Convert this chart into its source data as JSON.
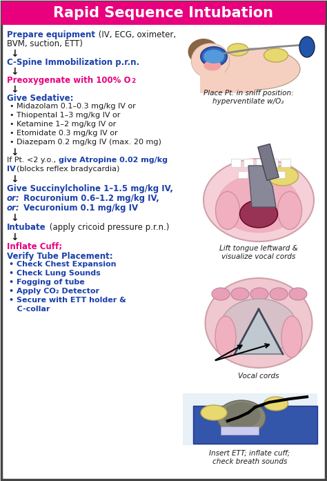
{
  "title": "Rapid Sequence Intubation",
  "title_bg": "#E8007D",
  "title_color": "#FFFFFF",
  "bg_color": "#FFFFFF",
  "border_color": "#444444",
  "blue_color": "#1A3FAA",
  "pink_color": "#E8007D",
  "black_color": "#1A1A1A",
  "figsize": [
    4.74,
    6.97
  ],
  "dpi": 100,
  "img1_caption": "Place Pt. in sniff position:\nhyperventilate w/O₂",
  "img2_caption": "Lift tongue leftward &\nvisualize vocal cords",
  "img3_caption": "Vocal cords",
  "img4_caption": "Insert ETT; inflate cuff;\ncheck breath sounds"
}
